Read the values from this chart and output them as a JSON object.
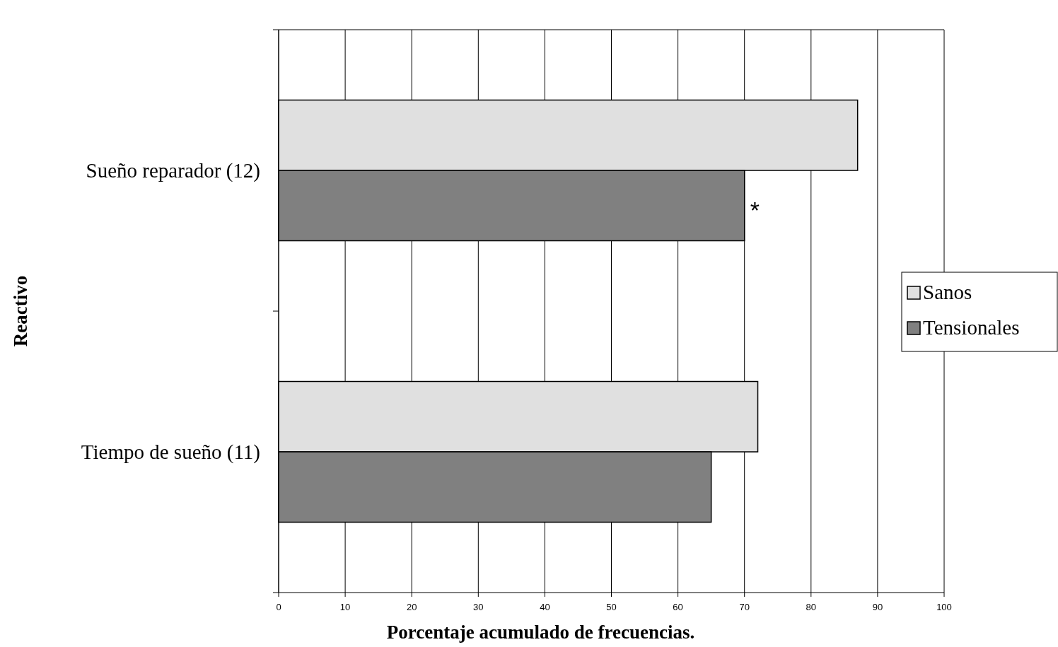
{
  "chart_data": {
    "type": "bar",
    "orientation": "horizontal",
    "xlabel": "Porcentaje acumulado de frecuencias.",
    "ylabel": "Reactivo",
    "categories": [
      "Sueño reparador (12)",
      "Tiempo de sueño (11)"
    ],
    "series": [
      {
        "name": "Sanos",
        "color": "#e0e0e0",
        "values": [
          87,
          72
        ]
      },
      {
        "name": "Tensionales",
        "color": "#808080",
        "values": [
          70,
          65
        ]
      }
    ],
    "xlim": [
      0,
      100
    ],
    "xticks": [
      0,
      10,
      20,
      30,
      40,
      50,
      60,
      70,
      80,
      90,
      100
    ],
    "grid": "x",
    "legend": "right",
    "annotations": [
      {
        "text": "*",
        "x": 70,
        "y": "Sueño reparador (12)"
      }
    ]
  }
}
